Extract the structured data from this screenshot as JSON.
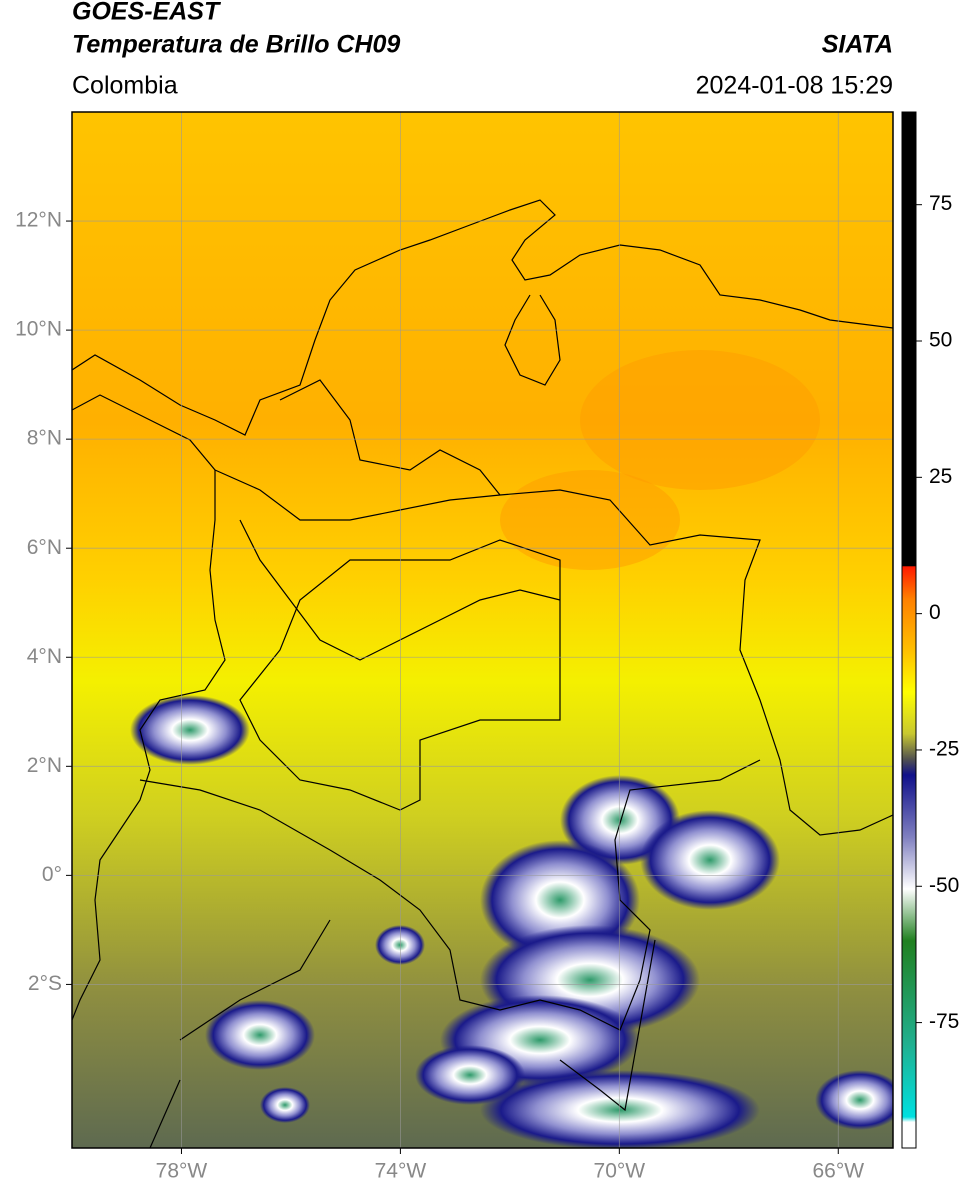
{
  "header": {
    "title_line1": "GOES-EAST",
    "title_line2": "Temperatura de Brillo CH09",
    "source": "SIATA",
    "region": "Colombia",
    "timestamp": "2024-01-08 15:29"
  },
  "map": {
    "xlim": [
      -80,
      -65
    ],
    "ylim": [
      -5,
      14
    ],
    "xticks": [
      {
        "value": -78,
        "label": "78°W"
      },
      {
        "value": -74,
        "label": "74°W"
      },
      {
        "value": -70,
        "label": "70°W"
      },
      {
        "value": -66,
        "label": "66°W"
      }
    ],
    "yticks": [
      {
        "value": 12,
        "label": "12°N"
      },
      {
        "value": 10,
        "label": "10°N"
      },
      {
        "value": 8,
        "label": "8°N"
      },
      {
        "value": 6,
        "label": "6°N"
      },
      {
        "value": 4,
        "label": "4°N"
      },
      {
        "value": 2,
        "label": "2°N"
      },
      {
        "value": 0,
        "label": "0°"
      },
      {
        "value": -2,
        "label": "2°S"
      }
    ],
    "grid": true
  },
  "colorbar": {
    "lim": [
      -98,
      92
    ],
    "ticks": [
      75,
      50,
      25,
      0,
      -25,
      -50,
      -75
    ]
  }
}
